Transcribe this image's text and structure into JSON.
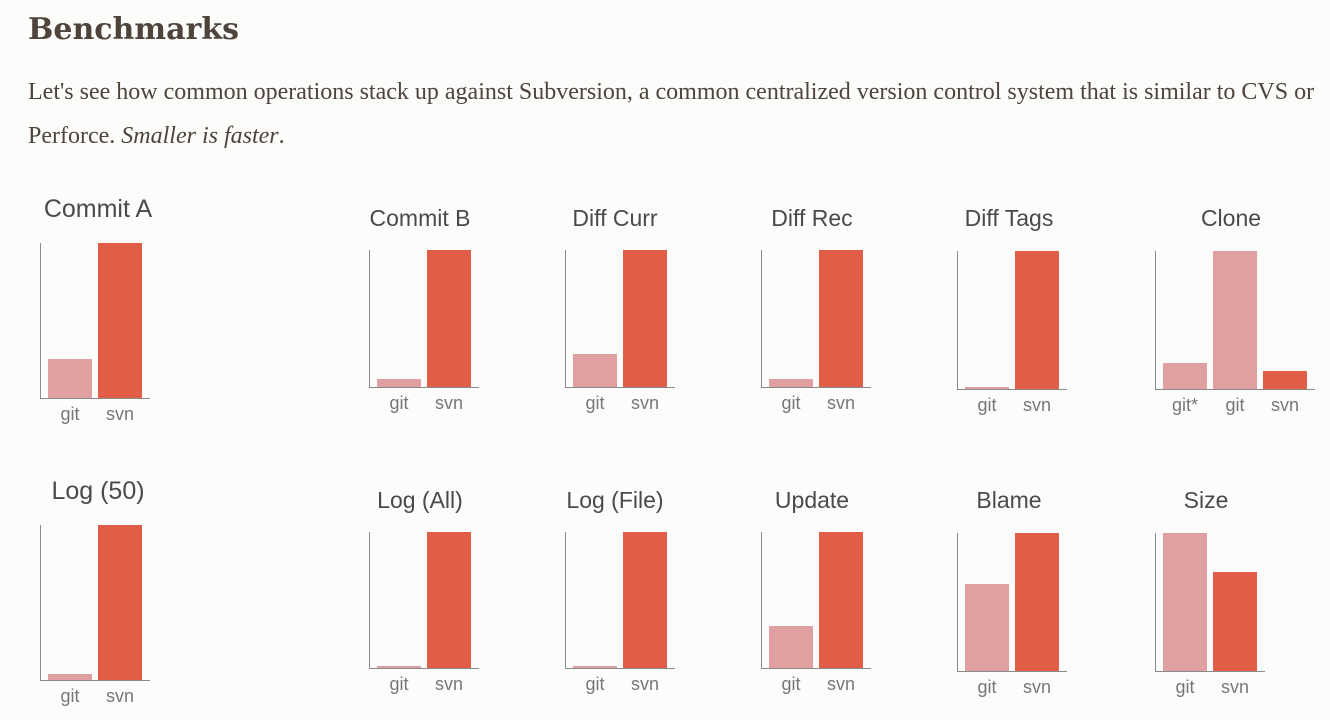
{
  "heading": "Benchmarks",
  "intro": {
    "text": "Let's see how common operations stack up against Subversion, a common centralized version control system that is similar to CVS or Perforce.",
    "emphasis": "Smaller is faster",
    "end": "."
  },
  "colors": {
    "git": "#e0a0a2",
    "svn": "#e05d47",
    "axis": "#8a8a8a",
    "title_text": "#4a4a4a",
    "tick_text": "#777777"
  },
  "chart_data": [
    {
      "type": "bar",
      "title": "Commit A",
      "categories": [
        "git",
        "svn"
      ],
      "values": [
        0.25,
        1.0
      ],
      "ylim": [
        0,
        1
      ]
    },
    {
      "type": "bar",
      "title": "Commit B",
      "categories": [
        "git",
        "svn"
      ],
      "values": [
        0.06,
        1.0
      ],
      "ylim": [
        0,
        1
      ]
    },
    {
      "type": "bar",
      "title": "Diff Curr",
      "categories": [
        "git",
        "svn"
      ],
      "values": [
        0.24,
        1.0
      ],
      "ylim": [
        0,
        1
      ]
    },
    {
      "type": "bar",
      "title": "Diff Rec",
      "categories": [
        "git",
        "svn"
      ],
      "values": [
        0.06,
        1.0
      ],
      "ylim": [
        0,
        1
      ]
    },
    {
      "type": "bar",
      "title": "Diff Tags",
      "categories": [
        "git",
        "svn"
      ],
      "values": [
        0.01,
        1.0
      ],
      "ylim": [
        0,
        1
      ]
    },
    {
      "type": "bar",
      "title": "Clone",
      "categories": [
        "git*",
        "git",
        "svn"
      ],
      "values": [
        0.19,
        1.0,
        0.13
      ],
      "ylim": [
        0,
        1
      ]
    },
    {
      "type": "bar",
      "title": "Log (50)",
      "categories": [
        "git",
        "svn"
      ],
      "values": [
        0.04,
        1.0
      ],
      "ylim": [
        0,
        1
      ]
    },
    {
      "type": "bar",
      "title": "Log (All)",
      "categories": [
        "git",
        "svn"
      ],
      "values": [
        0.0,
        1.0
      ],
      "ylim": [
        0,
        1
      ]
    },
    {
      "type": "bar",
      "title": "Log (File)",
      "categories": [
        "git",
        "svn"
      ],
      "values": [
        0.0,
        1.0
      ],
      "ylim": [
        0,
        1
      ]
    },
    {
      "type": "bar",
      "title": "Update",
      "categories": [
        "git",
        "svn"
      ],
      "values": [
        0.31,
        1.0
      ],
      "ylim": [
        0,
        1
      ]
    },
    {
      "type": "bar",
      "title": "Blame",
      "categories": [
        "git",
        "svn"
      ],
      "values": [
        0.63,
        1.0
      ],
      "ylim": [
        0,
        1
      ]
    },
    {
      "type": "bar",
      "title": "Size",
      "categories": [
        "git",
        "svn"
      ],
      "values": [
        1.0,
        0.72
      ],
      "ylim": [
        0,
        1
      ]
    }
  ]
}
